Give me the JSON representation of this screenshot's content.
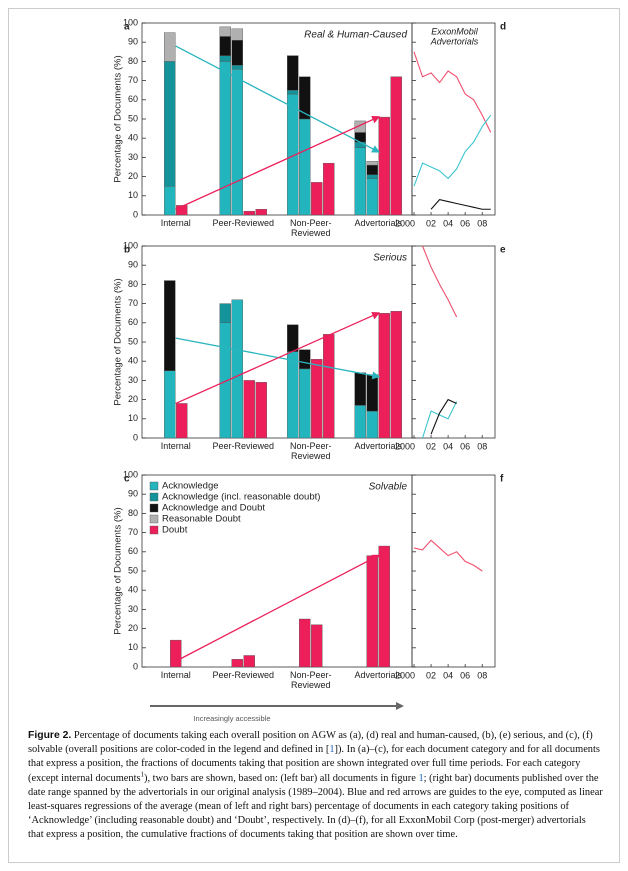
{
  "chart_data": [
    {
      "type": "bar",
      "label": "a",
      "title": "Real & Human-Caused",
      "ylabel": "Percentage of Documents (%)",
      "categories": [
        "Internal",
        "Peer-Reviewed",
        "Non-Peer-Reviewed",
        "Advertorials"
      ],
      "ylim": [
        0,
        100
      ],
      "yticks": [
        0,
        10,
        20,
        30,
        40,
        50,
        60,
        70,
        80,
        90,
        100
      ],
      "series": [
        {
          "color": "#22b5bd",
          "values": [
            [
              15,
              null
            ],
            [
              80,
              76
            ],
            [
              63,
              50
            ],
            [
              35,
              19
            ]
          ]
        },
        {
          "color": "#14939a",
          "values": [
            [
              65,
              null
            ],
            [
              3,
              2
            ],
            [
              2,
              null
            ],
            [
              3,
              2
            ]
          ]
        },
        {
          "color": "#111111",
          "values": [
            [
              null,
              null
            ],
            [
              10,
              13
            ],
            [
              18,
              22
            ],
            [
              5,
              5
            ]
          ]
        },
        {
          "color": "#b0b0b0",
          "values": [
            [
              15,
              null
            ],
            [
              5,
              6
            ],
            [
              null,
              null
            ],
            [
              6,
              2
            ]
          ]
        },
        {
          "color": "#ec1f5a",
          "stacked": false,
          "values": [
            [
              5,
              null
            ],
            [
              2,
              3
            ],
            [
              17,
              27
            ],
            [
              51,
              72
            ]
          ]
        }
      ],
      "arrows": [
        {
          "color": "#2ab5bf",
          "start": 88,
          "end": 33
        },
        {
          "color": "#ec1f5a",
          "start": 3,
          "end": 51
        }
      ]
    },
    {
      "type": "bar",
      "label": "b",
      "title": "Serious",
      "ylabel": "Percentage of Documents (%)",
      "categories": [
        "Internal",
        "Peer-Reviewed",
        "Non-Peer-Reviewed",
        "Advertorials"
      ],
      "ylim": [
        0,
        100
      ],
      "yticks": [
        0,
        10,
        20,
        30,
        40,
        50,
        60,
        70,
        80,
        90,
        100
      ],
      "series": [
        {
          "color": "#22b5bd",
          "values": [
            [
              35,
              null
            ],
            [
              60,
              72
            ],
            [
              45,
              36
            ],
            [
              17,
              14
            ]
          ]
        },
        {
          "color": "#14939a",
          "values": [
            [
              null,
              null
            ],
            [
              10,
              null
            ],
            [
              null,
              null
            ],
            [
              null,
              null
            ]
          ]
        },
        {
          "color": "#111111",
          "values": [
            [
              47,
              null
            ],
            [
              null,
              null
            ],
            [
              14,
              10
            ],
            [
              17,
              19
            ]
          ]
        },
        {
          "color": "#ec1f5a",
          "stacked": false,
          "values": [
            [
              18,
              null
            ],
            [
              30,
              29
            ],
            [
              41,
              54
            ],
            [
              65,
              66
            ]
          ]
        }
      ],
      "arrows": [
        {
          "color": "#2ab5bf",
          "start": 52,
          "end": 32
        },
        {
          "color": "#ec1f5a",
          "start": 18,
          "end": 65
        }
      ]
    },
    {
      "type": "bar",
      "label": "c",
      "title": "Solvable",
      "ylabel": "Percentage of Documents (%)",
      "categories": [
        "Internal",
        "Peer-Reviewed",
        "Non-Peer-Reviewed",
        "Advertorials"
      ],
      "ylim": [
        0,
        100
      ],
      "yticks": [
        0,
        10,
        20,
        30,
        40,
        50,
        60,
        70,
        80,
        90,
        100
      ],
      "legend": [
        {
          "name": "Acknowledge",
          "color": "#22b5bd"
        },
        {
          "name": "Acknowledge (incl. reasonable doubt)",
          "color": "#14939a"
        },
        {
          "name": "Acknowledge and Doubt",
          "color": "#111111"
        },
        {
          "name": "Reasonable Doubt",
          "color": "#b0b0b0"
        },
        {
          "name": "Doubt",
          "color": "#ec1f5a"
        }
      ],
      "series": [
        {
          "color": "#ec1f5a",
          "stacked": false,
          "values": [
            [
              14,
              null
            ],
            [
              4,
              6
            ],
            [
              25,
              22
            ],
            [
              58,
              63
            ]
          ]
        }
      ],
      "arrows": [
        {
          "color": "#ec1f5a",
          "start": 3,
          "end": 58
        }
      ]
    },
    {
      "type": "line",
      "label": "d",
      "title": [
        "ExxonMobil",
        "Advertorials"
      ],
      "x": [
        2000,
        2001,
        2002,
        2003,
        2004,
        2005,
        2006,
        2007,
        2008,
        2009
      ],
      "xlim": [
        2000,
        2009.5
      ],
      "xticks": [
        2000,
        {
          "value": 2002,
          "label": "02"
        },
        {
          "value": 2004,
          "label": "04"
        },
        {
          "value": 2006,
          "label": "06"
        },
        {
          "value": 2008,
          "label": "08"
        }
      ],
      "ylim": [
        0,
        100
      ],
      "series": [
        {
          "color": "#f0506e",
          "values": [
            85,
            72,
            74,
            69,
            75,
            72,
            63,
            60,
            52,
            43
          ]
        },
        {
          "color": "#3cc6cf",
          "values": [
            15,
            27,
            25,
            23,
            19,
            24,
            33,
            38,
            46,
            52
          ]
        },
        {
          "color": "#111111",
          "values": [
            null,
            null,
            3,
            8,
            7,
            6,
            5,
            4,
            3,
            3
          ]
        }
      ]
    },
    {
      "type": "line",
      "label": "e",
      "x": [
        2000,
        2001,
        2002,
        2003,
        2004,
        2005,
        2006,
        2007,
        2008,
        2009
      ],
      "xlim": [
        2000,
        2009.5
      ],
      "xticks": [
        2000,
        {
          "value": 2002,
          "label": "02"
        },
        {
          "value": 2004,
          "label": "04"
        },
        {
          "value": 2006,
          "label": "06"
        },
        {
          "value": 2008,
          "label": "08"
        }
      ],
      "ylim": [
        0,
        100
      ],
      "series": [
        {
          "color": "#f0506e",
          "values": [
            null,
            100,
            89,
            80,
            72,
            63,
            null,
            null,
            null,
            null
          ]
        },
        {
          "color": "#3cc6cf",
          "values": [
            null,
            0,
            14,
            12,
            10,
            19,
            null,
            null,
            null,
            null
          ]
        },
        {
          "color": "#111111",
          "values": [
            null,
            null,
            2,
            13,
            20,
            18,
            null,
            null,
            null,
            null
          ]
        }
      ]
    },
    {
      "type": "line",
      "label": "f",
      "x": [
        2000,
        2001,
        2002,
        2003,
        2004,
        2005,
        2006,
        2007,
        2008,
        2009
      ],
      "xlim": [
        2000,
        2009.5
      ],
      "xticks": [
        2000,
        {
          "value": 2002,
          "label": "02"
        },
        {
          "value": 2004,
          "label": "04"
        },
        {
          "value": 2006,
          "label": "06"
        },
        {
          "value": 2008,
          "label": "08"
        }
      ],
      "ylim": [
        0,
        100
      ],
      "series": [
        {
          "color": "#f0506e",
          "values": [
            62,
            61,
            66,
            62,
            58,
            60,
            55,
            53,
            50,
            null
          ]
        }
      ]
    }
  ],
  "accessibility_label": "Increasingly accessible",
  "caption": {
    "label": "Figure 2.",
    "parts": [
      {
        "text": " Percentage of documents taking each overall position on AGW as (a), (d) real and human-caused, (b), (e) serious, and (c), (f) solvable (overall positions are color-coded in the legend and defined in ["
      },
      {
        "text": "1",
        "link": true
      },
      {
        "text": "]). In (a)–(c), for each document category and for all documents that express a position, the fractions of documents taking that position are shown integrated over full time periods. For each category (except internal documents"
      },
      {
        "text": "1",
        "sup": true
      },
      {
        "text": "), two bars are shown, based on: (left bar) all documents in figure "
      },
      {
        "text": "1",
        "link": true
      },
      {
        "text": "; (right bar) documents published over the date range spanned by the advertorials in our original analysis (1989–2004). Blue and red arrows are guides to the eye, computed as linear least-squares regressions of the average (mean of left and right bars) percentage of documents in each category taking positions of ‘Acknowledge’ (including reasonable doubt) and ‘Doubt’, respectively. In (d)–(f), for all ExxonMobil Corp (post-merger) advertorials that express a position, the cumulative fractions of documents taking that position are shown over time."
      }
    ]
  }
}
